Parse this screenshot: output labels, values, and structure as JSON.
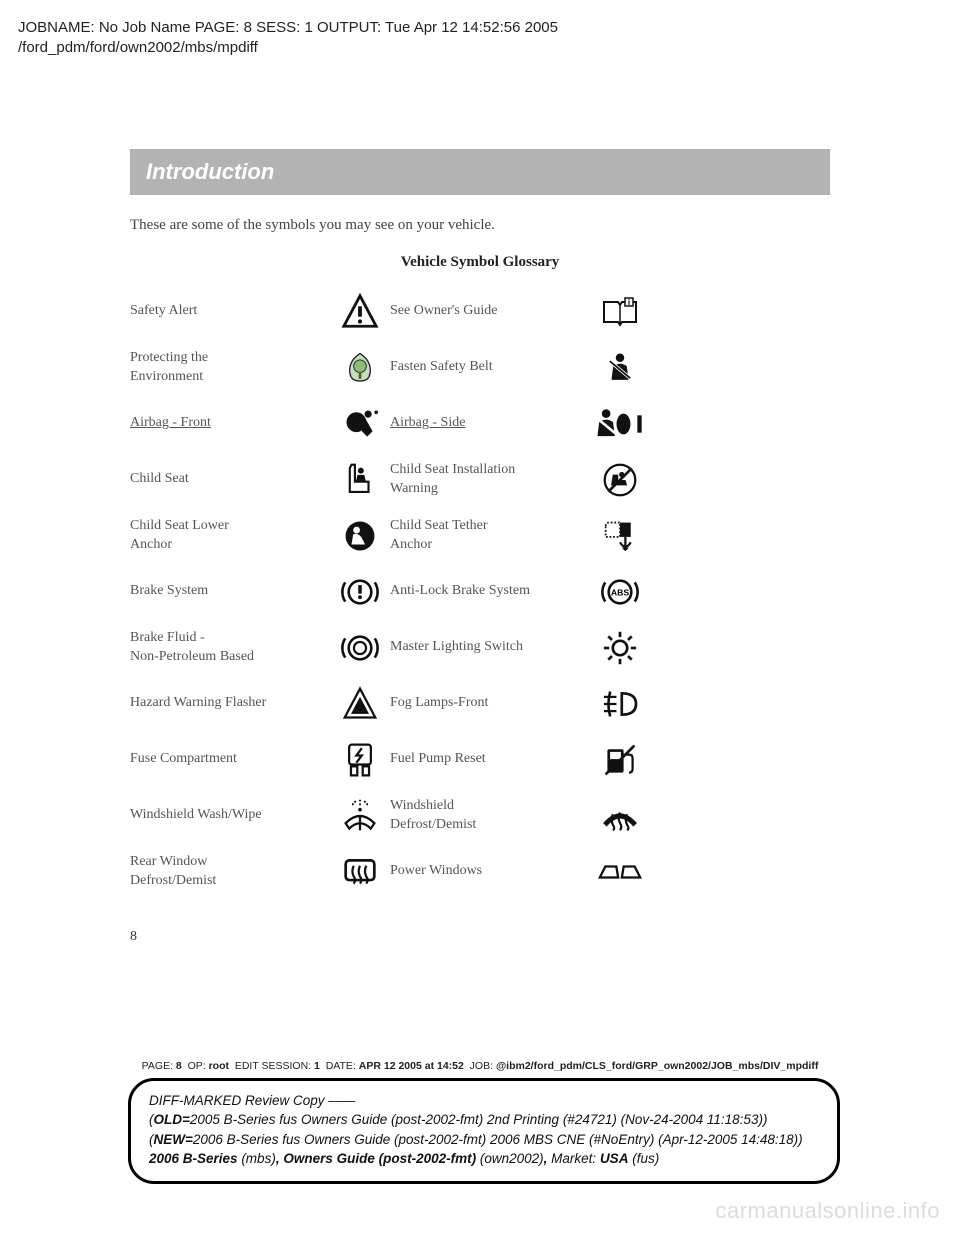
{
  "header_meta": {
    "line1": "JOBNAME: No Job Name  PAGE: 8  SESS: 1  OUTPUT: Tue Apr 12 14:52:56 2005",
    "line2": "/ford_pdm/ford/own2002/mbs/mpdiff"
  },
  "section_title": "Introduction",
  "intro_text": "These are some of the symbols you may see on your vehicle.",
  "table_title": "Vehicle Symbol Glossary",
  "rows": [
    {
      "l": "Safety Alert",
      "r": "See Owner's Guide",
      "lu": false,
      "ru": false
    },
    {
      "l": "Protecting the\nEnvironment",
      "r": "Fasten Safety Belt",
      "lu": false,
      "ru": false
    },
    {
      "l": "Airbag - Front",
      "r": "Airbag - Side",
      "lu": true,
      "ru": true
    },
    {
      "l": "Child Seat",
      "r": "Child Seat Installation\nWarning",
      "lu": false,
      "ru": false
    },
    {
      "l": "Child Seat Lower\nAnchor",
      "r": "Child Seat Tether\nAnchor",
      "lu": false,
      "ru": false
    },
    {
      "l": "Brake System",
      "r": "Anti-Lock Brake System",
      "lu": false,
      "ru": false
    },
    {
      "l": "Brake Fluid -\nNon-Petroleum Based",
      "r": "Master Lighting Switch",
      "lu": false,
      "ru": false
    },
    {
      "l": "Hazard Warning Flasher",
      "r": "Fog Lamps-Front",
      "lu": false,
      "ru": false
    },
    {
      "l": "Fuse Compartment",
      "r": "Fuel Pump Reset",
      "lu": false,
      "ru": false
    },
    {
      "l": "Windshield Wash/Wipe",
      "r": "Windshield\nDefrost/Demist",
      "lu": false,
      "ru": false
    },
    {
      "l": "Rear Window\nDefrost/Demist",
      "r": "Power Windows",
      "lu": false,
      "ru": false
    }
  ],
  "page_number": "8",
  "footer_meta": {
    "page": "8",
    "op": "root",
    "sess": "1",
    "date": "APR  12  2005  at  14:52",
    "job": "@ibm2/ford_pdm/CLS_ford/GRP_own2002/JOB_mbs/DIV_mpdiff"
  },
  "diff_box": {
    "line1": "DIFF-MARKED Review Copy ——",
    "old": "2005 B-Series fus Owners Guide (post-2002-fmt) 2nd Printing (#24721) (Nov-24-2004 11:18:53))",
    "new": "2006 B-Series fus Owners Guide (post-2002-fmt) 2006 MBS CNE (#NoEntry) (Apr-12-2005 14:48:18))",
    "model": "2006 B-Series",
    "model_suffix": " (mbs)",
    "guide": "Owners Guide (post-2002-fmt)",
    "guide_suffix": " (own2002)",
    "market_label": " Market: ",
    "market": "USA",
    "market_suffix": " (fus)"
  },
  "watermark": "carmanualsonline.info",
  "colors": {
    "banner_bg": "#b3b3b3",
    "banner_text": "#ffffff",
    "body_text": "#444444",
    "icon_fill": "#111111"
  }
}
